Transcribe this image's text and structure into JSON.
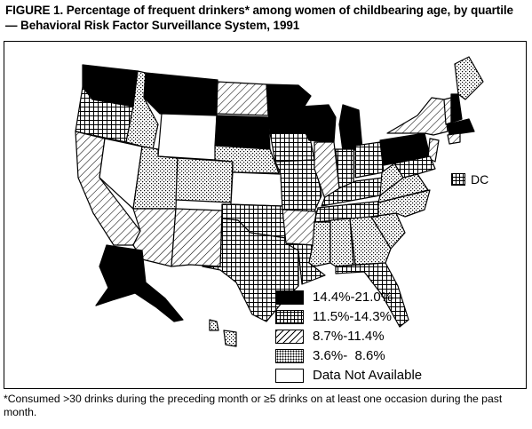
{
  "figure": {
    "title": "FIGURE 1. Percentage of frequent drinkers* among women of childbearing age, by quartile — Behavioral Risk Factor Surveillance System, 1991"
  },
  "legend": {
    "items": [
      {
        "label": "14.4%-21.0%",
        "pattern": "solid-black"
      },
      {
        "label": "11.5%-14.3%",
        "pattern": "crosshatch"
      },
      {
        "label": "8.7%-11.4%",
        "pattern": "diagonal-lines"
      },
      {
        "label": "3.6%-  8.6%",
        "pattern": "dots"
      },
      {
        "label": "Data Not Available",
        "pattern": "white"
      }
    ]
  },
  "dc_marker": {
    "label": "DC",
    "pattern": "crosshatch"
  },
  "footnote": {
    "text": "*Consumed >30 drinks during the preceding month or ≥5 drinks on at least one occasion during the past month."
  },
  "colors": {
    "ink": "#000000",
    "paper": "#ffffff"
  }
}
